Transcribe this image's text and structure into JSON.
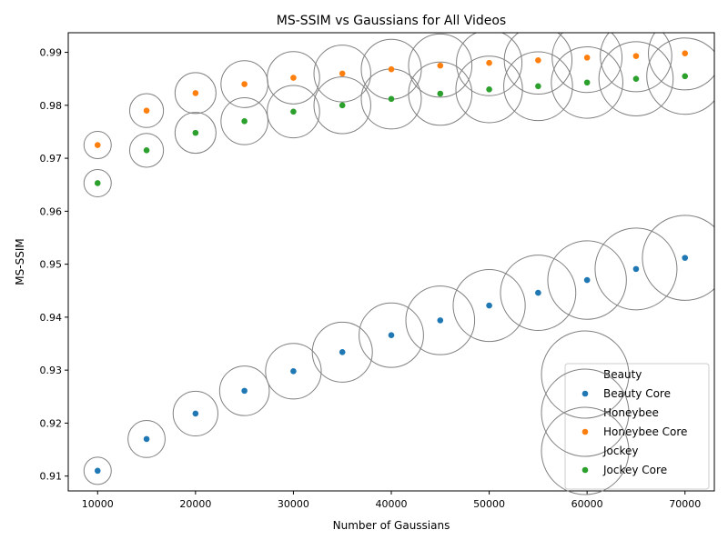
{
  "chart_data": {
    "type": "scatter",
    "title": "MS-SSIM vs Gaussians for All Videos",
    "xlabel": "Number of Gaussians",
    "ylabel": "MS-SSIM",
    "xlim": [
      7000,
      73000
    ],
    "ylim": [
      0.9072,
      0.9937
    ],
    "xticks": [
      10000,
      20000,
      30000,
      40000,
      50000,
      60000,
      70000
    ],
    "yticks": [
      0.91,
      0.92,
      0.93,
      0.94,
      0.95,
      0.96,
      0.97,
      0.98,
      0.99
    ],
    "grid": false,
    "legend_position": "lower-right",
    "x": [
      10000,
      15000,
      20000,
      25000,
      30000,
      35000,
      40000,
      45000,
      50000,
      55000,
      60000,
      65000,
      70000
    ],
    "series": [
      {
        "name": "Beauty",
        "marker": "hollow-circle",
        "values": [
          0.911,
          0.917,
          0.9218,
          0.9261,
          0.9298,
          0.9334,
          0.9366,
          0.9394,
          0.9422,
          0.9446,
          0.947,
          0.9491,
          0.9512
        ],
        "bubble_scale": [
          0.5,
          0.68,
          0.82,
          0.91,
          1.02,
          1.1,
          1.18,
          1.26,
          1.32,
          1.38,
          1.44,
          1.5,
          1.56
        ]
      },
      {
        "name": "Beauty Core",
        "marker": "dot",
        "values": [
          0.911,
          0.917,
          0.9218,
          0.9261,
          0.9298,
          0.9334,
          0.9366,
          0.9394,
          0.9422,
          0.9446,
          0.947,
          0.9491,
          0.9512
        ]
      },
      {
        "name": "Honeybee",
        "marker": "hollow-circle",
        "values": [
          0.9725,
          0.979,
          0.9823,
          0.984,
          0.9852,
          0.986,
          0.9868,
          0.9875,
          0.988,
          0.9885,
          0.989,
          0.9893,
          0.9898
        ],
        "bubble_scale": [
          0.5,
          0.62,
          0.75,
          0.86,
          0.96,
          1.04,
          1.1,
          1.16,
          1.2,
          1.24,
          1.28,
          1.31,
          1.34
        ]
      },
      {
        "name": "Honeybee Core",
        "marker": "dot",
        "values": [
          0.9725,
          0.979,
          0.9823,
          0.984,
          0.9852,
          0.986,
          0.9868,
          0.9875,
          0.988,
          0.9885,
          0.989,
          0.9893,
          0.9898
        ]
      },
      {
        "name": "Jockey",
        "marker": "hollow-circle",
        "values": [
          0.9653,
          0.9715,
          0.9748,
          0.977,
          0.9788,
          0.98,
          0.9812,
          0.9822,
          0.983,
          0.9836,
          0.9843,
          0.985,
          0.9855
        ],
        "bubble_scale": [
          0.5,
          0.62,
          0.75,
          0.86,
          0.96,
          1.04,
          1.1,
          1.16,
          1.22,
          1.26,
          1.31,
          1.36,
          1.4
        ]
      },
      {
        "name": "Jockey Core",
        "marker": "dot",
        "values": [
          0.9653,
          0.9715,
          0.9748,
          0.977,
          0.9788,
          0.98,
          0.9812,
          0.9822,
          0.983,
          0.9836,
          0.9843,
          0.985,
          0.9855
        ]
      }
    ],
    "colors": {
      "Beauty": "#1f77b4",
      "Honeybee": "#ff7f0e",
      "Jockey": "#2ca02c",
      "bubble_edge": "#808080",
      "axes": "#000000",
      "legend_frame": "#cccccc"
    }
  }
}
